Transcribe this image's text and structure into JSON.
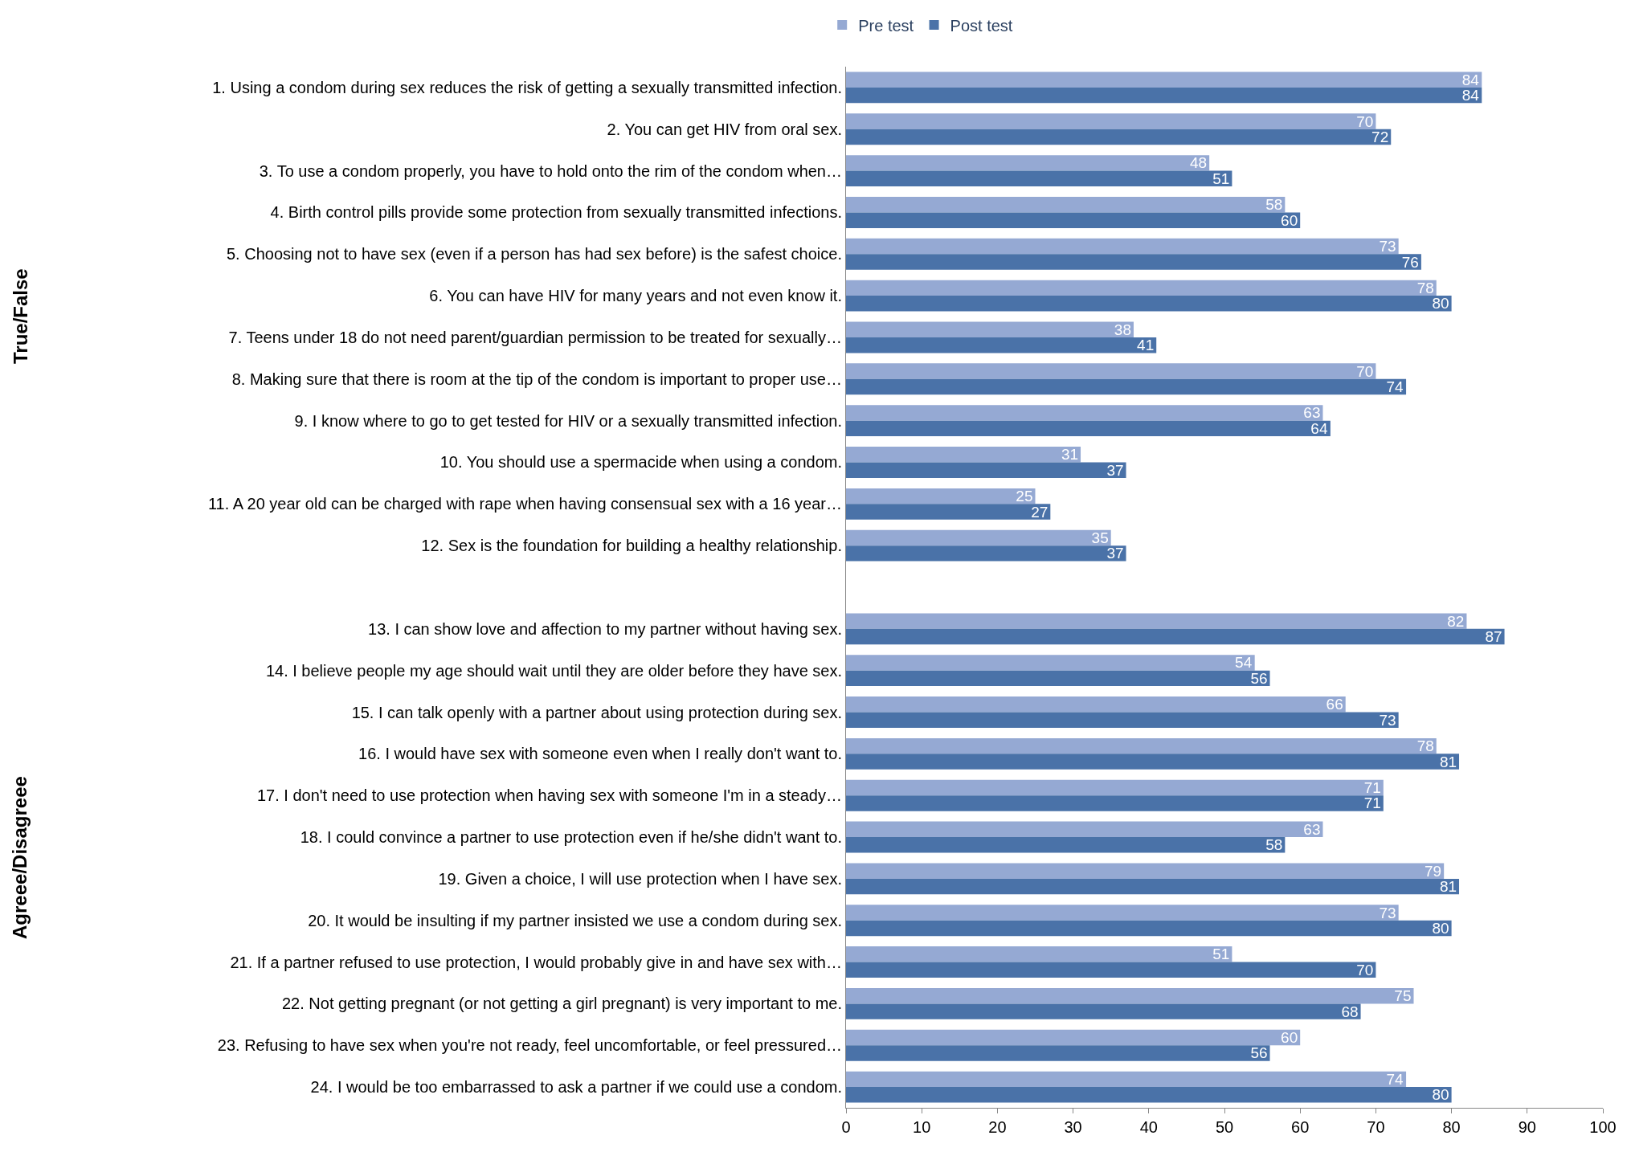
{
  "chart_data": {
    "type": "bar",
    "orientation": "horizontal",
    "categories": [
      "1. Using a condom during sex reduces the risk of getting a sexually transmitted infection.",
      "2. You can get HIV from oral sex.",
      "3. To use a condom properly, you have to hold onto the rim of the condom when…",
      "4. Birth control pills provide some protection from sexually transmitted infections.",
      "5. Choosing not to have sex (even if a person has had sex before) is the safest choice.",
      "6. You can have HIV for many years and not even know it.",
      "7. Teens under 18 do not need parent/guardian permission to be treated for sexually…",
      "8. Making sure that there is room at the tip of the condom is important to proper use…",
      "9. I know where to go to get tested for HIV or a sexually transmitted infection.",
      "10. You should use a spermacide when using a condom.",
      "11. A 20 year old can be charged with rape when having consensual sex with a 16 year…",
      "12. Sex is the foundation for building a healthy relationship.",
      null,
      "13. I can show love and affection to my partner without having sex.",
      "14. I believe people my age should wait until they are older before they have sex.",
      "15. I can talk openly with a partner about using protection during sex.",
      "16. I would have sex with someone even when I really don't want to.",
      "17. I don't need to use protection when having sex with someone I'm in a steady…",
      "18. I could convince a partner to use protection even if he/she didn't want to.",
      "19. Given a choice, I will use protection when I have sex.",
      "20. It would be insulting if my partner insisted we use a condom during sex.",
      "21. If a partner refused to use protection, I would probably give in and have sex with…",
      "22. Not getting pregnant (or not getting a girl pregnant) is very important to me.",
      "23. Refusing to have sex when you're not ready, feel uncomfortable, or feel pressured…",
      "24. I would be too embarrassed to ask a partner if we could use a condom."
    ],
    "series": [
      {
        "name": "Pre test",
        "color": "#95a9d3",
        "values": [
          84,
          70,
          48,
          58,
          73,
          78,
          38,
          70,
          63,
          31,
          25,
          35,
          null,
          82,
          54,
          66,
          78,
          71,
          63,
          79,
          73,
          51,
          75,
          60,
          74
        ]
      },
      {
        "name": "Post test",
        "color": "#4a72a8",
        "values": [
          84,
          72,
          51,
          60,
          76,
          80,
          41,
          74,
          64,
          37,
          27,
          37,
          null,
          87,
          56,
          73,
          81,
          71,
          58,
          81,
          80,
          70,
          68,
          56,
          80
        ]
      }
    ],
    "xlim": [
      0,
      100
    ],
    "xticks": [
      0,
      10,
      20,
      30,
      40,
      50,
      60,
      70,
      80,
      90,
      100
    ],
    "data_labels": true,
    "legend": "top",
    "annotations": [
      "True/False",
      "Agreee/Disagreee"
    ]
  }
}
